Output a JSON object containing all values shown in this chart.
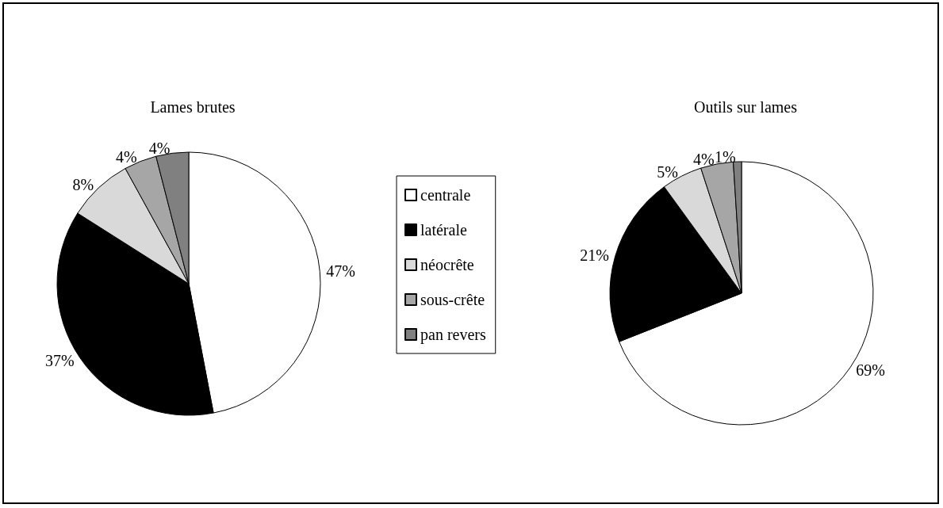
{
  "chart_data": [
    {
      "type": "pie",
      "title": "Lames brutes",
      "categories": [
        "centrale",
        "latérale",
        "néocrête",
        "sous-crête",
        "pan revers"
      ],
      "values": [
        47,
        37,
        8,
        4,
        4
      ],
      "value_labels": [
        "47%",
        "37%",
        "8%",
        "4%",
        "4%"
      ],
      "colors": [
        "#ffffff",
        "#000000",
        "#d9d9d9",
        "#a6a6a6",
        "#808080"
      ],
      "legend": "right"
    },
    {
      "type": "pie",
      "title": "Outils sur lames",
      "categories": [
        null,
        null,
        null,
        null,
        null
      ],
      "values": [
        69,
        21,
        5,
        4,
        1
      ],
      "value_labels": [
        "69%",
        "21%",
        "5%",
        "4%",
        "1%"
      ],
      "colors": [
        "#ffffff",
        "#000000",
        "#d9d9d9",
        "#a6a6a6",
        "#808080"
      ],
      "legend": false
    }
  ]
}
